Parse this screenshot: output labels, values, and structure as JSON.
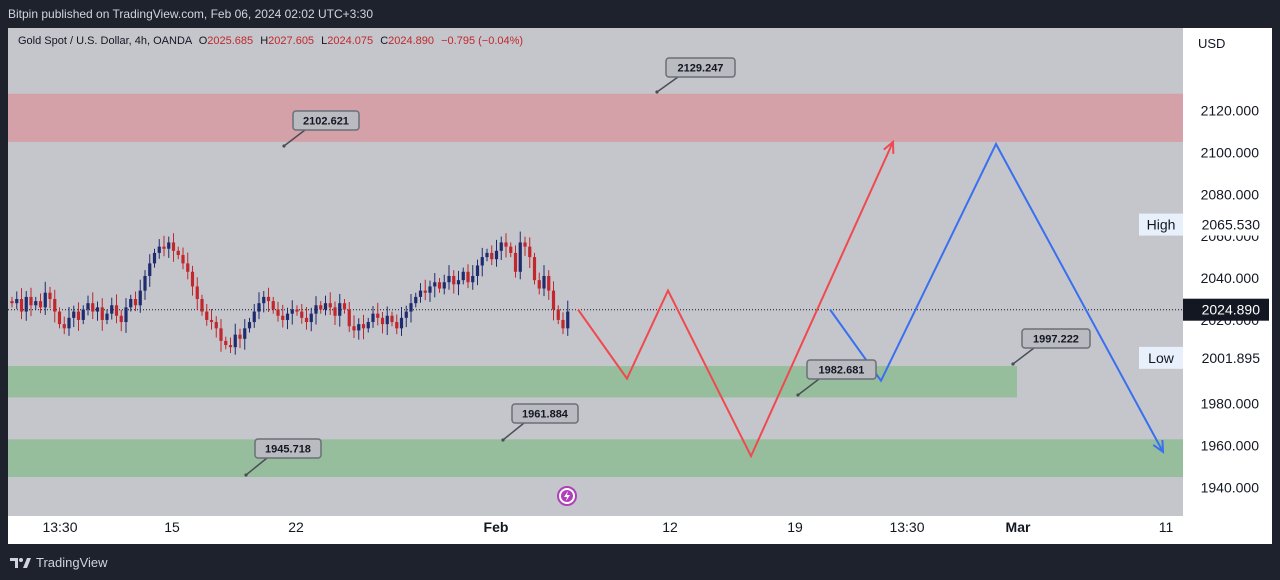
{
  "header": {
    "published": "Bitpin published on TradingView.com, Feb 06, 2024 02:02 UTC+3:30"
  },
  "legend": {
    "symbol": "Gold Spot / U.S. Dollar, 4h, OANDA",
    "o_label": "O",
    "o_value": "2025.685",
    "h_label": "H",
    "h_value": "2027.605",
    "l_label": "L",
    "l_value": "2024.075",
    "c_label": "C",
    "c_value": "2024.890",
    "change": "−0.795 (−0.04%)"
  },
  "currency_button": "USD",
  "footer": {
    "brand": "TradingView"
  },
  "colors": {
    "background": "#c4c6cb",
    "up_candle": "#1e2b6e",
    "down_candle": "#c1272d",
    "supply_zone": "#d79aa2",
    "demand_zone": "#8fbc94",
    "red_projection": "#f0494f",
    "blue_projection": "#3a6ff0"
  },
  "chart_data": {
    "type": "candlestick",
    "symbol": "XAUUSD",
    "timeframe": "4h",
    "x_ticks": [
      "13:30",
      "15",
      "22",
      "Feb",
      "12",
      "19",
      "13:30",
      "Mar",
      "11"
    ],
    "y_ticks": [
      1940,
      1960,
      1980,
      2000,
      2020,
      2040,
      2060,
      2080,
      2100,
      2120
    ],
    "y_tick_labels": [
      "1940.000",
      "1960.000",
      "1980.000",
      "2000.000",
      "2020.000",
      "2040.000",
      "2060.000",
      "2080.000",
      "2100.000",
      "2120.000"
    ],
    "ylim": [
      1928,
      2144
    ],
    "price_labels": [
      {
        "label": "High",
        "value": "2065.530",
        "price": 2065.53,
        "style": "light"
      },
      {
        "label": "",
        "value": "2024.890",
        "price": 2024.89,
        "style": "dark"
      },
      {
        "label": "Low",
        "value": "2001.895",
        "price": 2001.895,
        "style": "light"
      }
    ],
    "current_price": 2024.89,
    "zones": [
      {
        "name": "supply",
        "from": 2105,
        "to": 2128,
        "color": "#d79aa2"
      },
      {
        "name": "demand",
        "from": 1983,
        "to": 1998,
        "color": "#8fbc94"
      },
      {
        "name": "demand",
        "from": 1945,
        "to": 1963,
        "color": "#8fbc94"
      }
    ],
    "callouts": [
      {
        "text": "2129.247",
        "price": 2129.247
      },
      {
        "text": "2102.621",
        "price": 2102.621
      },
      {
        "text": "1997.222",
        "price": 1997.222
      },
      {
        "text": "1982.681",
        "price": 1982.681
      },
      {
        "text": "1961.884",
        "price": 1961.884
      },
      {
        "text": "1945.718",
        "price": 1945.718
      }
    ],
    "closes": [
      2028,
      2030,
      2024,
      2031,
      2027,
      2029,
      2026,
      2033,
      2030,
      2024,
      2018,
      2016,
      2021,
      2024,
      2020,
      2025,
      2028,
      2024,
      2026,
      2020,
      2023,
      2027,
      2022,
      2019,
      2026,
      2030,
      2027,
      2034,
      2041,
      2047,
      2052,
      2055,
      2054,
      2057,
      2053,
      2051,
      2047,
      2043,
      2036,
      2030,
      2024,
      2020,
      2019,
      2016,
      2010,
      2008,
      2007,
      2013,
      2011,
      2016,
      2019,
      2024,
      2028,
      2031,
      2029,
      2025,
      2022,
      2020,
      2023,
      2025,
      2024,
      2021,
      2019,
      2023,
      2027,
      2025,
      2028,
      2026,
      2022,
      2028,
      2025,
      2017,
      2015,
      2018,
      2016,
      2019,
      2023,
      2021,
      2018,
      2022,
      2019,
      2016,
      2021,
      2024,
      2028,
      2031,
      2034,
      2033,
      2036,
      2038,
      2035,
      2038,
      2041,
      2037,
      2039,
      2043,
      2038,
      2041,
      2046,
      2050,
      2052,
      2049,
      2053,
      2057,
      2055,
      2052,
      2043,
      2057,
      2055,
      2050,
      2039,
      2035,
      2041,
      2034,
      2025,
      2020,
      2016,
      2024
    ],
    "red_projection": [
      {
        "t": 0,
        "price": 2025
      },
      {
        "t": 1,
        "price": 1992
      },
      {
        "t": 2,
        "price": 2034
      },
      {
        "t": 3,
        "price": 1955
      },
      {
        "t": 4,
        "price": 2105
      }
    ],
    "blue_projection": [
      {
        "t": 0,
        "price": 2025
      },
      {
        "t": 1,
        "price": 1991
      },
      {
        "t": 2,
        "price": 2104
      },
      {
        "t": 3,
        "price": 1957
      }
    ]
  }
}
